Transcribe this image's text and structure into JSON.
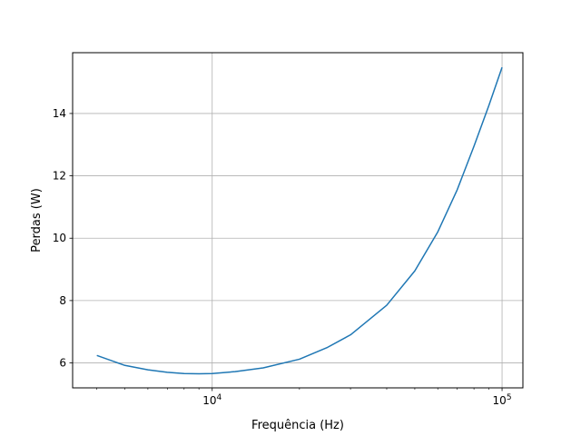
{
  "chart_data": {
    "type": "line",
    "title": "",
    "xlabel": "Frequência (Hz)",
    "ylabel": "Perdas (W)",
    "xscale": "log",
    "xlim": [
      3300,
      118000
    ],
    "ylim": [
      5.2,
      15.95
    ],
    "grid": true,
    "x_ticks": [
      {
        "value": 10000,
        "base": "10",
        "exp": "4"
      },
      {
        "value": 100000,
        "base": "10",
        "exp": "5"
      }
    ],
    "y_ticks": [
      {
        "value": 6,
        "label": "6"
      },
      {
        "value": 8,
        "label": "8"
      },
      {
        "value": 10,
        "label": "10"
      },
      {
        "value": 12,
        "label": "12"
      },
      {
        "value": 14,
        "label": "14"
      }
    ],
    "series": [
      {
        "color": "#1f77b4",
        "x": [
          4000,
          5000,
          6000,
          7000,
          8000,
          9000,
          10000,
          12000,
          15000,
          20000,
          25000,
          30000,
          40000,
          50000,
          60000,
          70000,
          80000,
          90000,
          100000
        ],
        "y": [
          6.24,
          5.92,
          5.78,
          5.7,
          5.66,
          5.65,
          5.66,
          5.72,
          5.84,
          6.12,
          6.5,
          6.9,
          7.85,
          8.95,
          10.2,
          11.55,
          12.95,
          14.25,
          15.48
        ]
      }
    ]
  }
}
